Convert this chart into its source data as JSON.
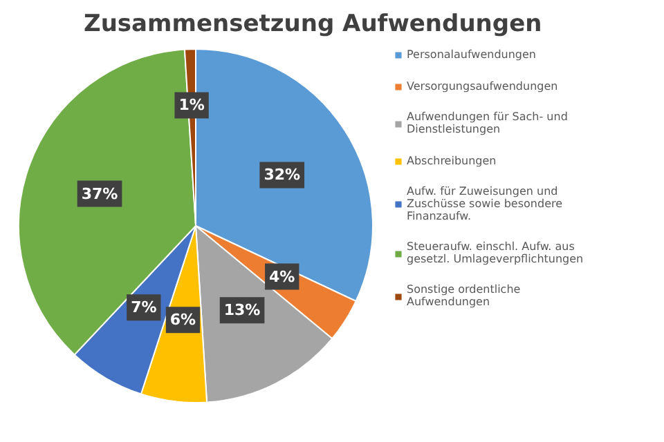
{
  "chart_data": {
    "type": "pie",
    "title": "Zusammensetzung  Aufwendungen",
    "categories": [
      "Personalaufwendungen",
      "Versorgungsaufwendungen",
      "Aufwendungen für Sach- und Dienstleistungen",
      "Abschreibungen",
      "Aufw. für Zuweisungen und Zuschüsse sowie besondere Finanzaufw.",
      "Steueraufw. einschl. Aufw. aus gesetzl. Umlageverpflichtungen",
      "Sonstige ordentliche Aufwendungen"
    ],
    "values": [
      32,
      4,
      13,
      6,
      7,
      37,
      1
    ],
    "colors": [
      "#5b9bd5",
      "#ed7d31",
      "#a5a5a5",
      "#ffc000",
      "#4472c4",
      "#70ad47",
      "#9e480e"
    ],
    "value_labels": [
      "32%",
      "4%",
      "13%",
      "6%",
      "7%",
      "37%",
      "1%"
    ],
    "legend": "right"
  }
}
